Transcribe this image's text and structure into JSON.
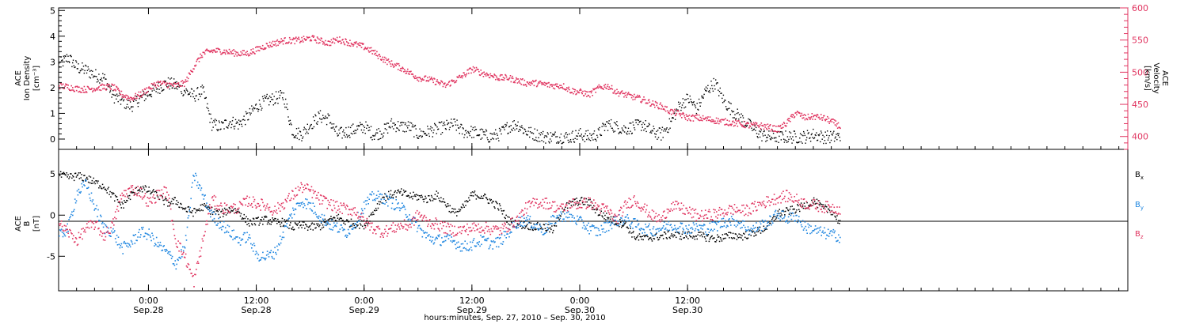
{
  "chart_data": [
    {
      "type": "scatter",
      "panel": "top",
      "left_axis": {
        "label_line1": "ACE",
        "label_line2": "Ion Density",
        "units": "[cm⁻³]",
        "ylim": [
          -0.4,
          5.1
        ],
        "ticks": [
          "0",
          "1",
          "2",
          "3",
          "4",
          "5"
        ]
      },
      "right_axis": {
        "label_line1": "ACE",
        "label_line2": "Velocity",
        "units": "[km/s]",
        "ylim": [
          380,
          600
        ],
        "ticks": [
          "400",
          "450",
          "500",
          "550",
          "600"
        ],
        "color": "#e0335f"
      },
      "series": [
        {
          "name": "",
          "axis": "left",
          "color": "#000000",
          "x_hours": [
            0,
            1,
            2,
            3,
            4,
            5,
            6,
            7,
            8,
            9,
            10,
            11,
            12,
            13,
            14,
            15,
            16,
            17,
            18,
            19,
            20,
            21,
            22,
            23,
            24,
            25,
            26,
            27,
            28,
            29,
            30,
            31,
            32,
            33,
            34,
            35,
            36,
            37,
            38,
            39,
            40,
            41,
            42,
            43,
            44,
            45,
            46,
            47,
            48,
            49,
            50,
            51,
            52,
            53,
            54,
            55,
            56,
            57,
            58,
            59,
            60,
            61,
            62,
            63,
            64,
            65,
            66,
            67,
            68,
            69,
            70,
            71,
            72,
            73,
            74,
            75,
            76,
            77,
            78,
            79,
            80,
            81,
            82,
            83,
            84,
            85,
            86,
            87
          ],
          "values": [
            2.9,
            3.2,
            2.8,
            2.7,
            2.5,
            2.4,
            1.7,
            1.5,
            1.3,
            1.6,
            1.8,
            2.0,
            2.2,
            2.1,
            1.9,
            1.7,
            1.9,
            0.6,
            0.5,
            0.7,
            0.6,
            0.9,
            1.3,
            1.5,
            1.6,
            1.7,
            0.3,
            0.2,
            0.6,
            0.9,
            0.8,
            0.2,
            0.3,
            0.4,
            0.5,
            0.2,
            0.3,
            0.6,
            0.5,
            0.5,
            0.2,
            0.3,
            0.4,
            0.5,
            0.6,
            0.3,
            0.3,
            0.2,
            0.1,
            0.2,
            0.5,
            0.6,
            0.3,
            0.2,
            0.1,
            0.1,
            0.1,
            0.1,
            0.2,
            0.1,
            0.2,
            0.6,
            0.5,
            0.4,
            0.5,
            0.6,
            0.3,
            0.2,
            0.6,
            1.3,
            1.6,
            1.2,
            1.9,
            2.2,
            1.5,
            1.1,
            0.8,
            0.5,
            0.2,
            0.1,
            0.1,
            0.1,
            0.1,
            0.1,
            0.2,
            0.1,
            0.1,
            0.1
          ]
        },
        {
          "name": "",
          "axis": "right",
          "color": "#e0335f",
          "x_hours": [
            0,
            1,
            2,
            3,
            4,
            5,
            6,
            7,
            8,
            9,
            10,
            11,
            12,
            13,
            14,
            15,
            16,
            17,
            18,
            19,
            20,
            21,
            22,
            23,
            24,
            25,
            26,
            27,
            28,
            29,
            30,
            31,
            32,
            33,
            34,
            35,
            36,
            37,
            38,
            39,
            40,
            41,
            42,
            43,
            44,
            45,
            46,
            47,
            48,
            49,
            50,
            51,
            52,
            53,
            54,
            55,
            56,
            57,
            58,
            59,
            60,
            61,
            62,
            63,
            64,
            65,
            66,
            67,
            68,
            69,
            70,
            71,
            72,
            73,
            74,
            75,
            76,
            77,
            78,
            79,
            80,
            81,
            82,
            83,
            84,
            85,
            86,
            87
          ],
          "values": [
            480,
            478,
            475,
            474,
            476,
            478,
            478,
            466,
            460,
            466,
            476,
            484,
            482,
            480,
            484,
            510,
            530,
            534,
            534,
            532,
            530,
            530,
            536,
            542,
            546,
            550,
            550,
            551,
            554,
            550,
            546,
            552,
            548,
            544,
            540,
            532,
            522,
            514,
            508,
            500,
            492,
            490,
            486,
            480,
            488,
            496,
            506,
            500,
            496,
            492,
            492,
            488,
            484,
            484,
            482,
            480,
            480,
            472,
            470,
            466,
            476,
            480,
            470,
            466,
            462,
            458,
            452,
            448,
            440,
            436,
            430,
            430,
            428,
            426,
            424,
            422,
            420,
            418,
            418,
            415,
            412,
            422,
            438,
            430,
            432,
            430,
            424,
            416
          ]
        }
      ]
    },
    {
      "type": "scatter",
      "panel": "bottom",
      "left_axis": {
        "label_line1": "ACE",
        "label_line2": "B",
        "units": "[nT]",
        "ylim": [
          -9.2,
          8.0
        ],
        "ticks": [
          "5",
          "0",
          "-5"
        ]
      },
      "legend": [
        {
          "label": "B",
          "sub": "x",
          "color": "#000000"
        },
        {
          "label": "B",
          "sub": "y",
          "color": "#1e86e0"
        },
        {
          "label": "B",
          "sub": "z",
          "color": "#e0335f"
        }
      ],
      "series": [
        {
          "name": "Bx",
          "color": "#000000",
          "x_hours": [
            0,
            1,
            2,
            3,
            4,
            5,
            6,
            7,
            8,
            9,
            10,
            11,
            12,
            13,
            14,
            15,
            16,
            17,
            18,
            19,
            20,
            21,
            22,
            23,
            24,
            25,
            26,
            27,
            28,
            29,
            30,
            31,
            32,
            33,
            34,
            35,
            36,
            37,
            38,
            39,
            40,
            41,
            42,
            43,
            44,
            45,
            46,
            47,
            48,
            49,
            50,
            51,
            52,
            53,
            54,
            55,
            56,
            57,
            58,
            59,
            60,
            61,
            62,
            63,
            64,
            65,
            66,
            67,
            68,
            69,
            70,
            71,
            72,
            73,
            74,
            75,
            76,
            77,
            78,
            79,
            80,
            81,
            82,
            83,
            84,
            85,
            86,
            87
          ],
          "values": [
            4.9,
            4.7,
            4.8,
            4.6,
            4.0,
            3.6,
            2.4,
            1.2,
            2.5,
            3.4,
            3.0,
            2.4,
            1.5,
            1.8,
            0.8,
            0.4,
            1.1,
            0.6,
            0.2,
            0.8,
            0.5,
            -0.8,
            -0.7,
            -0.5,
            -0.8,
            -0.8,
            -1.4,
            -1.2,
            -1.4,
            -1.3,
            -0.6,
            -0.2,
            -0.8,
            -1.0,
            -1.1,
            0.5,
            2.2,
            2.6,
            2.8,
            2.4,
            2.3,
            2.0,
            2.5,
            1.5,
            0.3,
            1.0,
            2.6,
            2.4,
            1.8,
            1.0,
            -0.6,
            -1.0,
            -1.2,
            -1.3,
            -1.4,
            -1.8,
            0.8,
            1.5,
            1.8,
            1.6,
            0.4,
            -0.2,
            -0.8,
            -1.0,
            -2.5,
            -2.8,
            -2.6,
            -2.5,
            -2.3,
            -2.4,
            -2.4,
            -2.4,
            -2.6,
            -2.8,
            -2.6,
            -2.4,
            -2.5,
            -2.2,
            -1.8,
            -1.2,
            0.3,
            0.5,
            0.8,
            1.2,
            1.8,
            0.9,
            0.6,
            -1.0
          ]
        },
        {
          "name": "By",
          "color": "#1e86e0",
          "x_hours": [
            0,
            1,
            2,
            3,
            4,
            5,
            6,
            7,
            8,
            9,
            10,
            11,
            12,
            13,
            14,
            15,
            16,
            17,
            18,
            19,
            20,
            21,
            22,
            23,
            24,
            25,
            26,
            27,
            28,
            29,
            30,
            31,
            32,
            33,
            34,
            35,
            36,
            37,
            38,
            39,
            40,
            41,
            42,
            43,
            44,
            45,
            46,
            47,
            48,
            49,
            50,
            51,
            52,
            53,
            54,
            55,
            56,
            57,
            58,
            59,
            60,
            61,
            62,
            63,
            64,
            65,
            66,
            67,
            68,
            69,
            70,
            71,
            72,
            73,
            74,
            75,
            76,
            77,
            78,
            79,
            80,
            81,
            82,
            83,
            84,
            85,
            86,
            87
          ],
          "values": [
            -2.5,
            -1.5,
            2.8,
            3.8,
            1.0,
            -1.5,
            -2.0,
            -4.0,
            -3.3,
            -2.0,
            -2.3,
            -3.5,
            -4.5,
            -5.8,
            -3.8,
            5.0,
            2.5,
            0.0,
            -1.0,
            -2.0,
            -3.0,
            -2.5,
            -4.8,
            -5.0,
            -4.5,
            -2.0,
            0.5,
            1.8,
            1.2,
            0.0,
            -1.0,
            -1.5,
            -2.0,
            -0.8,
            1.3,
            2.4,
            2.2,
            1.6,
            1.0,
            0.0,
            -1.5,
            -2.6,
            -3.0,
            -2.8,
            -3.2,
            -3.8,
            -3.5,
            -3.0,
            -3.4,
            -3.2,
            -2.0,
            -0.8,
            -0.5,
            -1.2,
            -1.8,
            -0.5,
            0.0,
            -0.2,
            -0.8,
            -1.5,
            -2.0,
            -1.2,
            -0.6,
            -0.4,
            -1.0,
            -1.5,
            -1.8,
            -1.5,
            -1.2,
            -1.3,
            -1.6,
            -1.4,
            -1.6,
            -1.3,
            -0.8,
            -0.5,
            -1.0,
            -1.8,
            -1.2,
            -0.8,
            0.3,
            -0.4,
            0.0,
            -1.4,
            -1.7,
            -2.1,
            -2.3,
            -2.6
          ]
        },
        {
          "name": "Bz",
          "color": "#e0335f",
          "x_hours": [
            0,
            1,
            2,
            3,
            4,
            5,
            6,
            7,
            8,
            9,
            10,
            11,
            12,
            13,
            14,
            15,
            16,
            17,
            18,
            19,
            20,
            21,
            22,
            23,
            24,
            25,
            26,
            27,
            28,
            29,
            30,
            31,
            32,
            33,
            34,
            35,
            36,
            37,
            38,
            39,
            40,
            41,
            42,
            43,
            44,
            45,
            46,
            47,
            48,
            49,
            50,
            51,
            52,
            53,
            54,
            55,
            56,
            57,
            58,
            59,
            60,
            61,
            62,
            63,
            64,
            65,
            66,
            67,
            68,
            69,
            70,
            71,
            72,
            73,
            74,
            75,
            76,
            77,
            78,
            79,
            80,
            81,
            82,
            83,
            84,
            85,
            86,
            87
          ],
          "values": [
            -1.0,
            -2.0,
            -3.0,
            -1.5,
            -1.0,
            -2.5,
            -1.0,
            2.5,
            3.2,
            3.0,
            1.5,
            2.6,
            3.0,
            -3.0,
            -5.0,
            -8.0,
            -3.0,
            2.0,
            1.0,
            0.8,
            1.0,
            1.8,
            1.5,
            1.2,
            0.6,
            1.5,
            2.5,
            3.5,
            3.0,
            2.0,
            1.5,
            1.0,
            0.8,
            0.6,
            -0.8,
            -1.5,
            -2.0,
            -1.6,
            -1.2,
            -1.2,
            0.2,
            -0.8,
            -1.0,
            -1.5,
            -1.8,
            -1.7,
            -1.5,
            -1.4,
            -1.6,
            -1.8,
            -1.2,
            -0.5,
            1.0,
            1.6,
            1.6,
            1.2,
            0.8,
            1.5,
            1.4,
            1.6,
            1.0,
            0.7,
            -0.5,
            1.2,
            2.0,
            1.0,
            0.0,
            -0.5,
            1.2,
            1.0,
            0.5,
            0.0,
            0.0,
            0.2,
            0.5,
            0.8,
            0.6,
            0.8,
            1.4,
            1.8,
            2.2,
            2.4,
            2.0,
            1.5,
            1.3,
            1.1,
            1.0,
            0.8
          ]
        }
      ]
    }
  ],
  "x_axis": {
    "tick_times": [
      "0:00",
      "12:00",
      "0:00",
      "12:00",
      "0:00",
      "12:00"
    ],
    "tick_dates": [
      "Sep.28",
      "Sep.28",
      "Sep.29",
      "Sep.29",
      "Sep.30",
      "Sep.30"
    ],
    "label": "hours:minutes, Sep. 27, 2010 – Sep. 30, 2010"
  }
}
